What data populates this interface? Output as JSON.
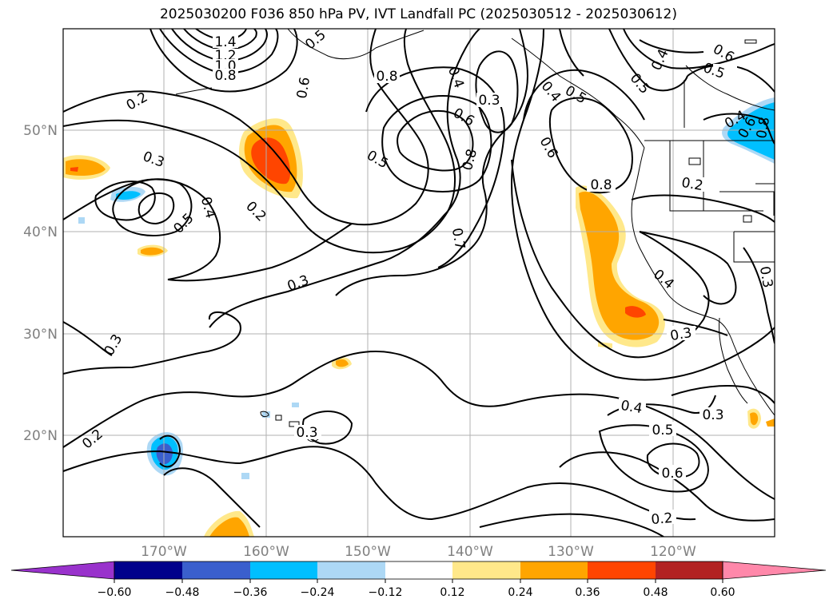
{
  "title": "2025030200 F036 850 hPa PV, IVT Landfall PC (2025030512 - 2025030612)",
  "lat_labels": [
    "50°N",
    "40°N",
    "30°N",
    "20°N"
  ],
  "lon_labels": [
    "170°W",
    "160°W",
    "150°W",
    "140°W",
    "130°W",
    "120°W"
  ],
  "contour_labels": {
    "l0": "1.4",
    "l1": "1.2",
    "l2": "1.0",
    "l3": "0.8",
    "l4": "0.5",
    "l5": "0.6",
    "l6": "0.2",
    "l7": "0.3",
    "l8": "0.4",
    "l9": "0.5",
    "l10": "0.2",
    "l11": "0.8",
    "l12": "0.4",
    "l13": "0.3",
    "l14": "0.6",
    "l15": "0.5",
    "l16": "0.8",
    "l17": "0.7",
    "l18": "0.3",
    "l19": "0.6",
    "l20": "0.8",
    "l21": "0.4",
    "l22": "0.5",
    "l23": "0.6",
    "l24": "0.4",
    "l25": "0.5",
    "l26": "0.8",
    "l27": "0.6",
    "l28": "0.5",
    "l29": "0.4",
    "l30": "0.4",
    "l31": "0.3",
    "l32": "0.3",
    "l33": "0.2",
    "l34": "0.3",
    "l35": "0.4",
    "l36": "0.5",
    "l37": "0.6",
    "l38": "0.3",
    "l39": "0.2"
  },
  "colorbar": {
    "ticks": [
      "−0.60",
      "−0.48",
      "−0.36",
      "−0.24",
      "−0.12",
      "0.12",
      "0.24",
      "0.36",
      "0.48",
      "0.60"
    ],
    "colors": [
      "#9932cc",
      "#00008b",
      "#3a5fcd",
      "#00bfff",
      "#add8f5",
      "#ffffff",
      "#ffe88a",
      "#ffa500",
      "#ff4500",
      "#b22222",
      "#ff88aa"
    ]
  }
}
